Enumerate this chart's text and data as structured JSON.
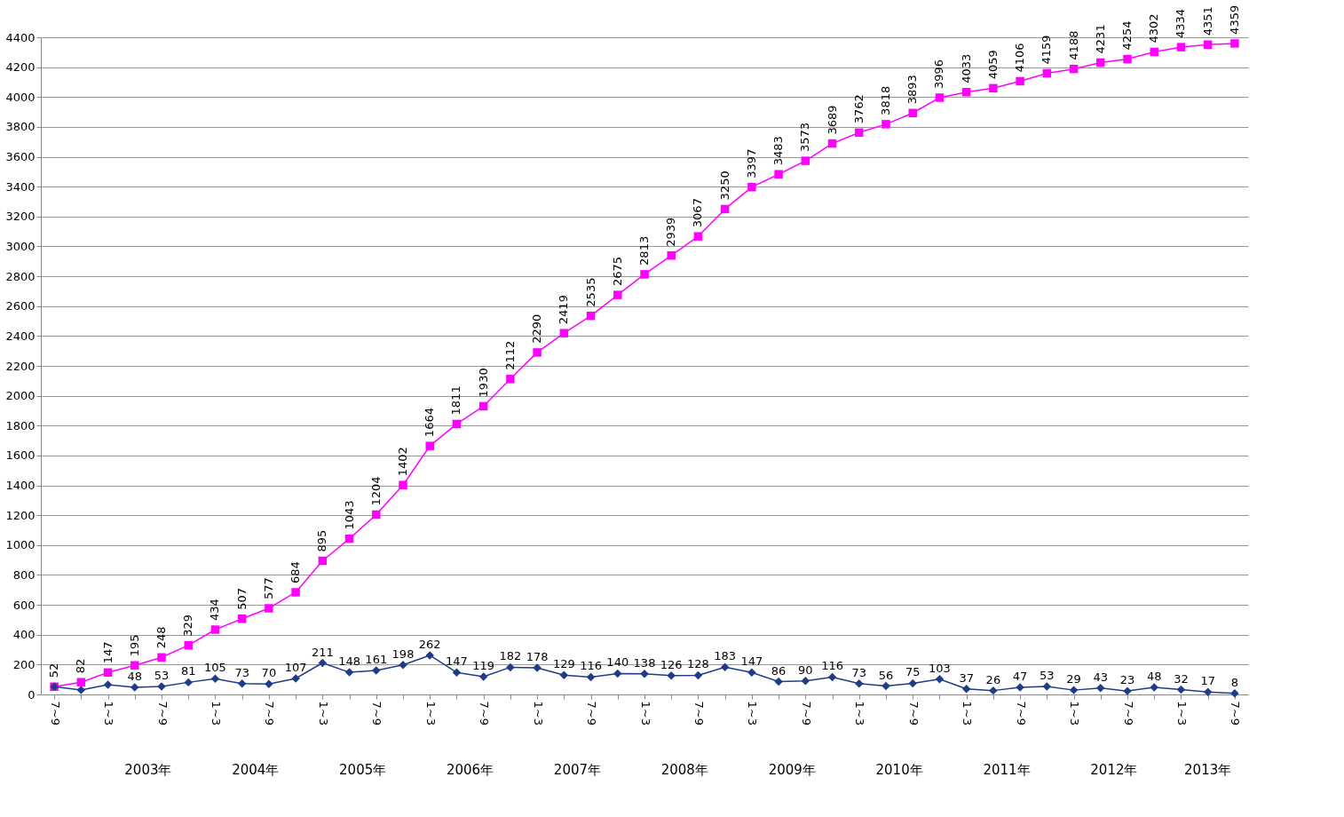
{
  "chart_data": {
    "type": "line",
    "categories": [
      "7~9",
      null,
      "1~3",
      null,
      "7~9",
      null,
      "1~3",
      null,
      "7~9",
      null,
      "1~3",
      null,
      "7~9",
      null,
      "1~3",
      null,
      "7~9",
      null,
      "1~3",
      null,
      "7~9",
      null,
      "1~3",
      null,
      "7~9",
      null,
      "1~3",
      null,
      "7~9",
      null,
      "1~3",
      null,
      "7~9",
      null,
      "1~3",
      null,
      "7~9",
      null,
      "1~3",
      null,
      "7~9",
      null,
      "1~3",
      null,
      "7~9"
    ],
    "series": [
      {
        "color": "#ff00ff",
        "marker": "square",
        "values": [
          52,
          82,
          147,
          195,
          248,
          329,
          434,
          507,
          577,
          684,
          895,
          1043,
          1204,
          1402,
          1664,
          1811,
          1930,
          2112,
          2290,
          2419,
          2535,
          2675,
          2813,
          2939,
          3067,
          3250,
          3397,
          3483,
          3573,
          3689,
          3762,
          3818,
          3893,
          3996,
          4033,
          4059,
          4106,
          4159,
          4188,
          4231,
          4254,
          4302,
          4334,
          4351,
          4359
        ],
        "value_labels": [
          "52",
          "82",
          "147",
          "195",
          "248",
          "329",
          "434",
          "507",
          "577",
          "684",
          "895",
          "1043",
          "1204",
          "1402",
          "1664",
          "1811",
          "1930",
          "2112",
          "2290",
          "2419",
          "2535",
          "2675",
          "2813",
          "2939",
          "3067",
          "3250",
          "3397",
          "3483",
          "3573",
          "3689",
          "3762",
          "3818",
          "3893",
          "3996",
          "4033",
          "4059",
          "4106",
          "4159",
          "4188",
          "4231",
          "4254",
          "4302",
          "4334",
          "4351",
          "4359"
        ]
      },
      {
        "color": "#1f3c88",
        "marker": "diamond",
        "values": [
          52,
          30,
          65,
          48,
          53,
          81,
          105,
          73,
          70,
          107,
          211,
          148,
          161,
          198,
          262,
          147,
          119,
          182,
          178,
          129,
          116,
          140,
          138,
          126,
          128,
          183,
          147,
          86,
          90,
          116,
          73,
          56,
          75,
          103,
          37,
          26,
          47,
          53,
          29,
          43,
          23,
          48,
          32,
          17,
          8
        ],
        "value_labels": [
          null,
          null,
          null,
          "48",
          "53",
          "81",
          "105",
          "73",
          "70",
          "107",
          "211",
          "148",
          "161",
          "198",
          "262",
          "147",
          "119",
          "182",
          "178",
          "129",
          "116",
          "140",
          "138",
          "126",
          "128",
          "183",
          "147",
          "86",
          "90",
          "116",
          "73",
          "56",
          "75",
          "103",
          "37",
          "26",
          "47",
          "53",
          "29",
          "43",
          "23",
          "48",
          "32",
          "17",
          "8"
        ]
      }
    ],
    "ylim": [
      0,
      4400
    ],
    "yticks": [
      0,
      200,
      400,
      600,
      800,
      1000,
      1200,
      1400,
      1600,
      1800,
      2000,
      2200,
      2400,
      2600,
      2800,
      3000,
      3200,
      3400,
      3600,
      3800,
      4000,
      4200,
      4400
    ],
    "grid": "y",
    "annotations": [
      "2003年",
      "2004年",
      "2005年",
      "2006年",
      "2007年",
      "2008年",
      "2009年",
      "2010年",
      "2011年",
      "2012年",
      "2013年"
    ]
  }
}
